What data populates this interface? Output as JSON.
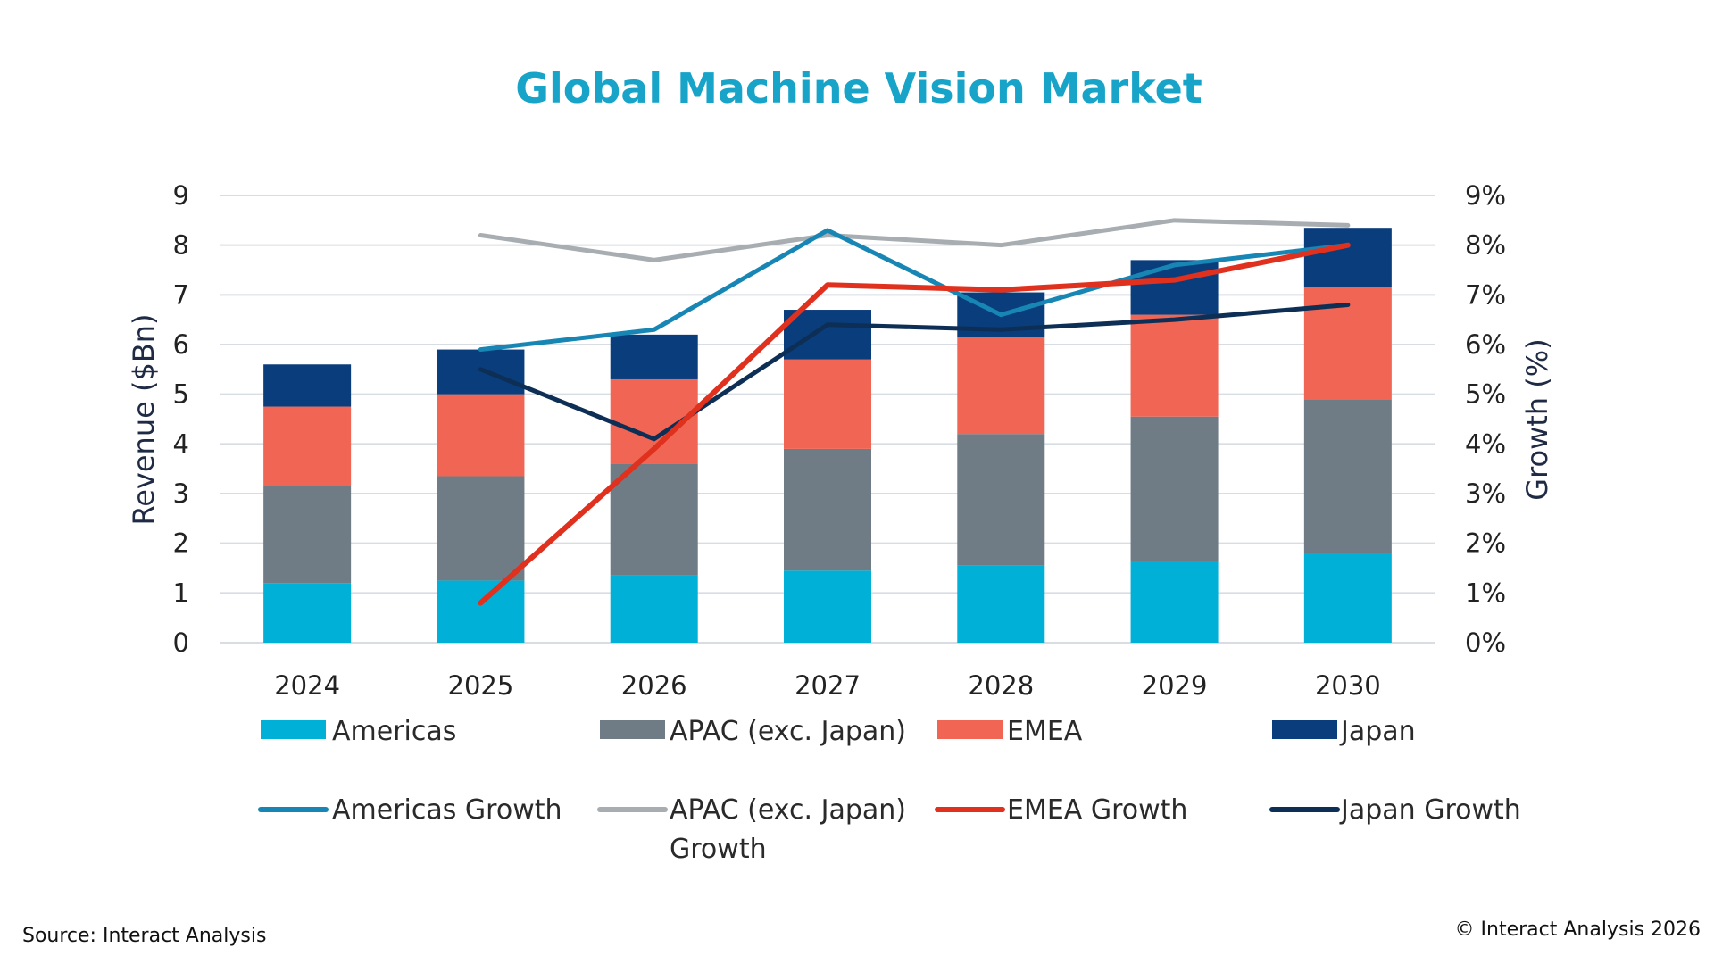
{
  "colors": {
    "Americas": "#00b0d6",
    "APAC (exc. Japan)": "#6f7c85",
    "EMEA": "#f06553",
    "Japan": "#0a3d7c",
    "Americas Growth": "#1786b4",
    "APAC (exc. Japan) Growth": "#a8adb1",
    "EMEA Growth": "#e0301e",
    "Japan Growth": "#0e2f55",
    "title": "#17a4c8",
    "grid": "#d7dde3"
  },
  "chart_data": {
    "type": "bar",
    "title": "Global Machine Vision Market",
    "ylabel": "Revenue ($Bn)",
    "y2label": "Growth (%)",
    "ylim": [
      0,
      9
    ],
    "y2lim": [
      0,
      9
    ],
    "yticks": [
      "0",
      "1",
      "2",
      "3",
      "4",
      "5",
      "6",
      "7",
      "8",
      "9"
    ],
    "y2ticks": [
      "0%",
      "1%",
      "2%",
      "3%",
      "4%",
      "5%",
      "6%",
      "7%",
      "8%",
      "9%"
    ],
    "categories": [
      "2024",
      "2025",
      "2026",
      "2027",
      "2028",
      "2029",
      "2030"
    ],
    "grid": true,
    "legend_position": "bottom",
    "stacked": true,
    "series": [
      {
        "name": "Americas",
        "type": "bar",
        "values": [
          1.2,
          1.25,
          1.35,
          1.45,
          1.55,
          1.65,
          1.8
        ]
      },
      {
        "name": "APAC (exc. Japan)",
        "type": "bar",
        "values": [
          1.95,
          2.1,
          2.25,
          2.45,
          2.65,
          2.9,
          3.1
        ]
      },
      {
        "name": "EMEA",
        "type": "bar",
        "values": [
          1.6,
          1.65,
          1.7,
          1.8,
          1.95,
          2.05,
          2.25
        ]
      },
      {
        "name": "Japan",
        "type": "bar",
        "values": [
          0.85,
          0.9,
          0.9,
          1.0,
          0.9,
          1.1,
          1.2
        ]
      },
      {
        "name": "Americas Growth",
        "type": "line",
        "axis": "right",
        "values": [
          null,
          5.9,
          6.3,
          8.3,
          6.6,
          7.6,
          8.0
        ]
      },
      {
        "name": "APAC (exc. Japan) Growth",
        "type": "line",
        "axis": "right",
        "values": [
          null,
          8.2,
          7.7,
          8.2,
          8.0,
          8.5,
          8.4
        ]
      },
      {
        "name": "EMEA Growth",
        "type": "line",
        "axis": "right",
        "values": [
          null,
          0.8,
          3.9,
          7.2,
          7.1,
          7.3,
          8.0
        ]
      },
      {
        "name": "Japan Growth",
        "type": "line",
        "axis": "right",
        "values": [
          null,
          5.5,
          4.1,
          6.4,
          6.3,
          6.5,
          6.8
        ]
      }
    ]
  },
  "legend": [
    {
      "name": "Americas",
      "kind": "box",
      "lines": [
        "Americas"
      ]
    },
    {
      "name": "APAC (exc. Japan)",
      "kind": "box",
      "lines": [
        "APAC (exc. Japan)"
      ]
    },
    {
      "name": "EMEA",
      "kind": "box",
      "lines": [
        "EMEA"
      ]
    },
    {
      "name": "Japan",
      "kind": "box",
      "lines": [
        "Japan"
      ]
    },
    {
      "name": "Americas Growth",
      "kind": "line",
      "lines": [
        "Americas Growth"
      ]
    },
    {
      "name": "APAC (exc. Japan) Growth",
      "kind": "line",
      "lines": [
        "APAC (exc. Japan)",
        "Growth"
      ]
    },
    {
      "name": "EMEA Growth",
      "kind": "line",
      "lines": [
        "EMEA Growth"
      ]
    },
    {
      "name": "Japan Growth",
      "kind": "line",
      "lines": [
        "Japan Growth"
      ]
    }
  ],
  "footer": {
    "source": "Source: Interact Analysis",
    "copyright": "© Interact Analysis 2026"
  }
}
